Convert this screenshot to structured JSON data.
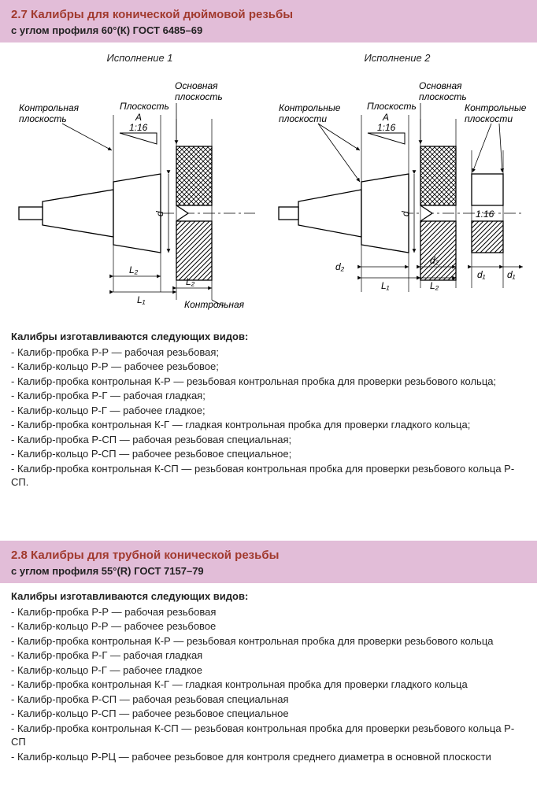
{
  "section27": {
    "title": "2.7  Калибры для конической дюймовой резьбы",
    "subtitle": "с углом профиля 60°(К) ГОСТ 6485–69",
    "exec1": "Исполнение 1",
    "exec2": "Исполнение 2",
    "diagram": {
      "label_kontrolnaya_ploskost": "Контрольная",
      "label_kontrolnaya_ploskost2": "плоскость",
      "label_osnovnaya": "Основная",
      "label_osnovnaya2": "плоскость",
      "label_ploskost_A": "Плоскость",
      "label_ploskost_A2": "А",
      "label_taper": "1:16",
      "label_kontrolnye": "Контрольные",
      "label_kontrolnye2": "плоскости",
      "L1": "L₁",
      "L2": "L₂",
      "d": "d",
      "d1": "d₁",
      "d2": "d₂",
      "colors": {
        "line": "#000",
        "hatch": "#000",
        "bg": "#fff"
      },
      "line_width": 1.3
    },
    "list_heading": "Калибры изготавливаются следующих видов:",
    "items": [
      "- Калибр-пробка Р-Р — рабочая резьбовая;",
      "- Калибр-кольцо Р-Р — рабочее резьбовое;",
      "- Калибр-пробка контрольная К-Р — резьбовая контрольная пробка для проверки резьбового кольца;",
      "- Калибр-пробка Р-Г — рабочая гладкая;",
      "- Калибр-кольцо Р-Г — рабочее гладкое;",
      "- Калибр-пробка контрольная К-Г — гладкая контрольная пробка для проверки гладкого кольца;",
      "- Калибр-пробка Р-СП — рабочая резьбовая специальная;",
      "- Калибр-кольцо Р-СП — рабочее резьбовое специальное;",
      "- Калибр-пробка контрольная К-СП — резьбовая контрольная пробка для проверки резьбового кольца Р-СП."
    ]
  },
  "section28": {
    "title": "2.8  Калибры для трубной конической резьбы",
    "subtitle": "с углом профиля 55°(R) ГОСТ 7157–79",
    "list_heading": "Калибры изготавливаются следующих видов:",
    "items": [
      "- Калибр-пробка Р-Р — рабочая резьбовая",
      "- Калибр-кольцо Р-Р — рабочее резьбовое",
      "- Калибр-пробка контрольная К-Р — резьбовая контрольная пробка для проверки резьбового кольца",
      "- Калибр-пробка Р-Г — рабочая гладкая",
      "- Калибр-кольцо Р-Г — рабочее гладкое",
      "- Калибр-пробка контрольная К-Г — гладкая контрольная пробка для проверки гладкого кольца",
      "- Калибр-пробка Р-СП — рабочая резьбовая специальная",
      "- Калибр-кольцо Р-СП — рабочее резьбовое специальное",
      "- Калибр-пробка контрольная К-СП — резьбовая контрольная пробка для проверки резьбового кольца Р-СП",
      "- Калибр-кольцо Р-РЦ — рабочее резьбовое для контроля среднего диаметра в основной плоскости"
    ]
  }
}
